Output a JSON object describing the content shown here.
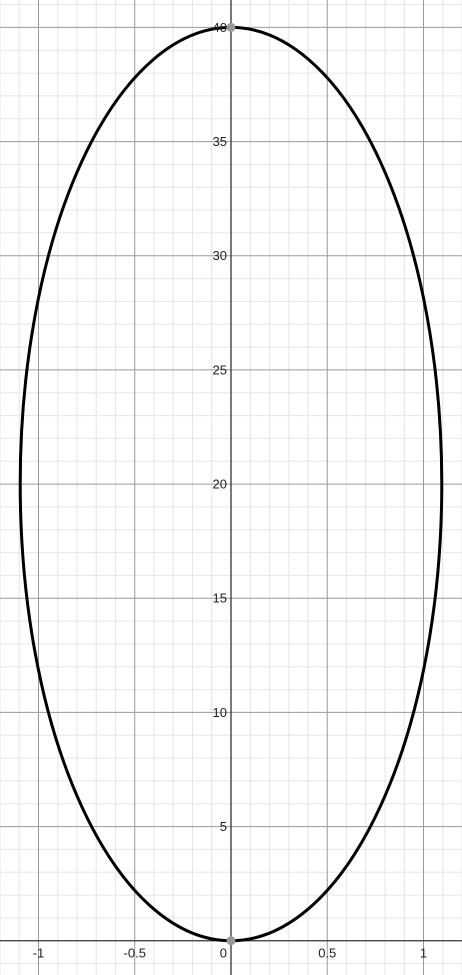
{
  "chart_data": {
    "type": "line",
    "title": "",
    "xlabel": "",
    "ylabel": "",
    "xlim": [
      -1.2,
      1.2
    ],
    "ylim": [
      -1.5,
      41.2
    ],
    "grid": true,
    "minor_grid": true,
    "x_ticks": [
      {
        "value": -1,
        "label": "-1"
      },
      {
        "value": -0.5,
        "label": "-0.5"
      },
      {
        "value": 0,
        "label": "0"
      },
      {
        "value": 0.5,
        "label": "0.5"
      },
      {
        "value": 1,
        "label": "1"
      }
    ],
    "y_ticks": [
      {
        "value": 5,
        "label": "5"
      },
      {
        "value": 10,
        "label": "10"
      },
      {
        "value": 15,
        "label": "15"
      },
      {
        "value": 20,
        "label": "20"
      },
      {
        "value": 25,
        "label": "25"
      },
      {
        "value": 30,
        "label": "30"
      },
      {
        "value": 35,
        "label": "35"
      },
      {
        "value": 40,
        "label": "40"
      }
    ],
    "curve": {
      "shape": "ellipse",
      "center": [
        0,
        20
      ],
      "semi_axis_x": 1.095,
      "semi_axis_y": 20,
      "color": "#000000"
    },
    "points": [
      {
        "x": 0,
        "y": 40,
        "color": "#999999"
      },
      {
        "x": 0,
        "y": 0,
        "color": "#999999"
      }
    ],
    "colors": {
      "background": "#ffffff",
      "minor_grid": "#e6e6e6",
      "major_grid": "#9a9a9a",
      "axis": "#333333"
    }
  }
}
